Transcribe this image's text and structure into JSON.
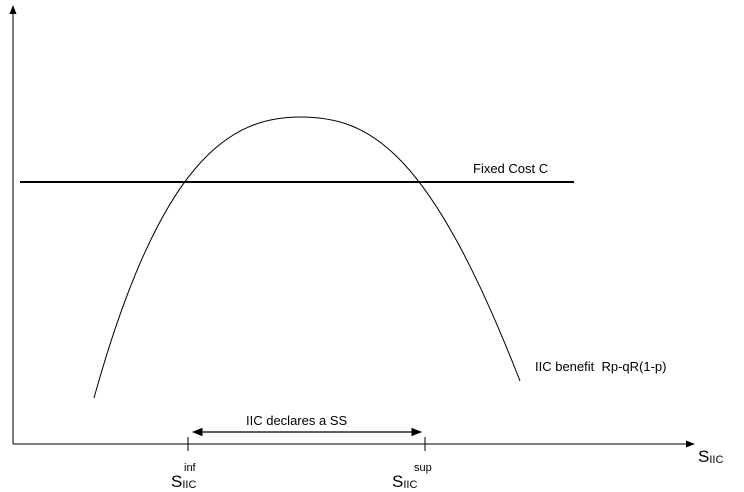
{
  "diagram": {
    "fixed_cost_label": "Fixed Cost C",
    "benefit_label": "IIC benefit  Rp-qR(1-p)",
    "interval_label": "IIC declares a SS",
    "x_axis": {
      "base": "S",
      "sub": "IIC"
    },
    "s_inf": {
      "base": "S",
      "sub": "IIC",
      "sup": "inf"
    },
    "s_sup": {
      "base": "S",
      "sub": "IIC",
      "sup": "sup"
    }
  }
}
